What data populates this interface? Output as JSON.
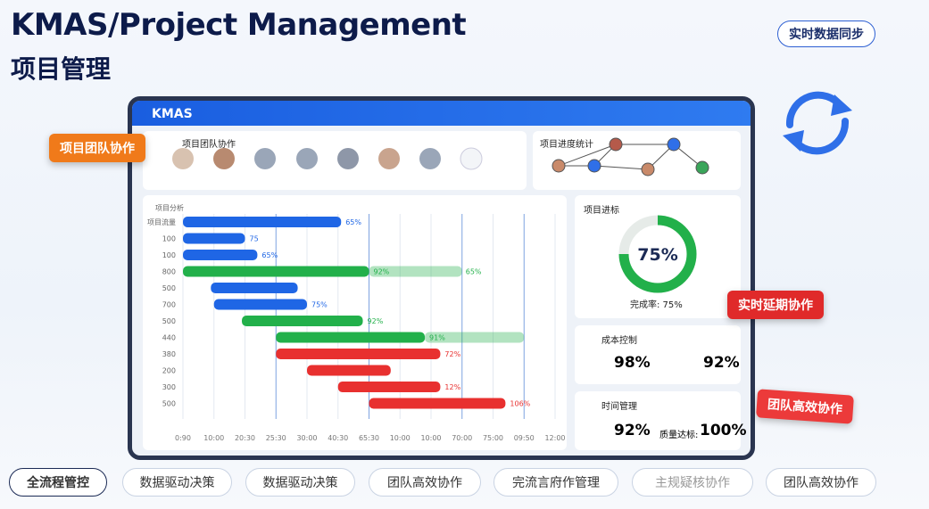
{
  "header": {
    "title": "KMAS/Project Management",
    "subtitle": "项目管理"
  },
  "sync_button": "实时数据同步",
  "app": {
    "brand": "KMAS"
  },
  "team": {
    "title": "项目团队协作"
  },
  "stats": {
    "title": "项目进度统计"
  },
  "badges": [
    "项目团队协作",
    "实时延期协作",
    "团队高效协作"
  ],
  "gantt": {
    "header": "项目分析",
    "xlim": [
      0,
      12
    ],
    "xticks": [
      {
        "value": 0,
        "label": "0:90"
      },
      {
        "value": 1,
        "label": "10:00"
      },
      {
        "value": 2,
        "label": "20:30"
      },
      {
        "value": 3,
        "label": "25:30"
      },
      {
        "value": 4,
        "label": "30:00"
      },
      {
        "value": 5,
        "label": "40:30"
      },
      {
        "value": 6,
        "label": "65:30"
      },
      {
        "value": 7,
        "label": "10:00"
      },
      {
        "value": 8,
        "label": "10:00"
      },
      {
        "value": 9,
        "label": "70:00"
      },
      {
        "value": 10,
        "label": "75:00"
      },
      {
        "value": 11,
        "label": "09:50"
      },
      {
        "value": 12,
        "label": "12:00"
      }
    ],
    "rows": [
      {
        "label": "项目流量",
        "start": 0,
        "end": 5.1,
        "color": "#1f66e5",
        "value_label": "65%"
      },
      {
        "label": "100",
        "start": 0,
        "end": 2.0,
        "color": "#1f66e5",
        "value_label": "75"
      },
      {
        "label": "100",
        "start": 0,
        "end": 2.4,
        "color": "#1f66e5",
        "value_label": "65%"
      },
      {
        "label": "800",
        "start": 0,
        "end": 6.0,
        "color": "#22b04a",
        "value_label": "92%",
        "extend": 9.0,
        "extend_label": "65%"
      },
      {
        "label": "500",
        "start": 0.9,
        "end": 3.7,
        "color": "#1f66e5"
      },
      {
        "label": "700",
        "start": 1.0,
        "end": 4.0,
        "color": "#1f66e5",
        "value_label": "75%"
      },
      {
        "label": "500",
        "start": 1.9,
        "end": 5.8,
        "color": "#22b04a",
        "value_label": "92%"
      },
      {
        "label": "440",
        "start": 3.0,
        "end": 7.8,
        "color": "#22b04a",
        "value_label": "91%",
        "extend": 11.0
      },
      {
        "label": "380",
        "start": 3.0,
        "end": 8.3,
        "color": "#e8302f",
        "value_label": "72%"
      },
      {
        "label": "200",
        "start": 4.0,
        "end": 6.7,
        "color": "#e8302f"
      },
      {
        "label": "300",
        "start": 5.0,
        "end": 8.3,
        "color": "#e8302f",
        "value_label": "12%"
      },
      {
        "label": "500",
        "start": 6.0,
        "end": 10.4,
        "color": "#e8302f",
        "value_label": "106%"
      }
    ]
  },
  "progress": {
    "title": "项目进标",
    "value": 75,
    "value_label": "75%",
    "caption": "完成率: 75%",
    "color": "#22b04a"
  },
  "cost": {
    "title": "成本控制",
    "left": "98%",
    "right": "92%"
  },
  "time": {
    "title": "时间管理",
    "left": "92%",
    "right_label": "质量达标:",
    "right": "100%"
  },
  "tabs": [
    "全流程管控",
    "数据驱动决策",
    "数据驱动决策",
    "团队高效协作",
    "完流言府作管理",
    "主规疑核协作",
    "团队高效协作"
  ]
}
